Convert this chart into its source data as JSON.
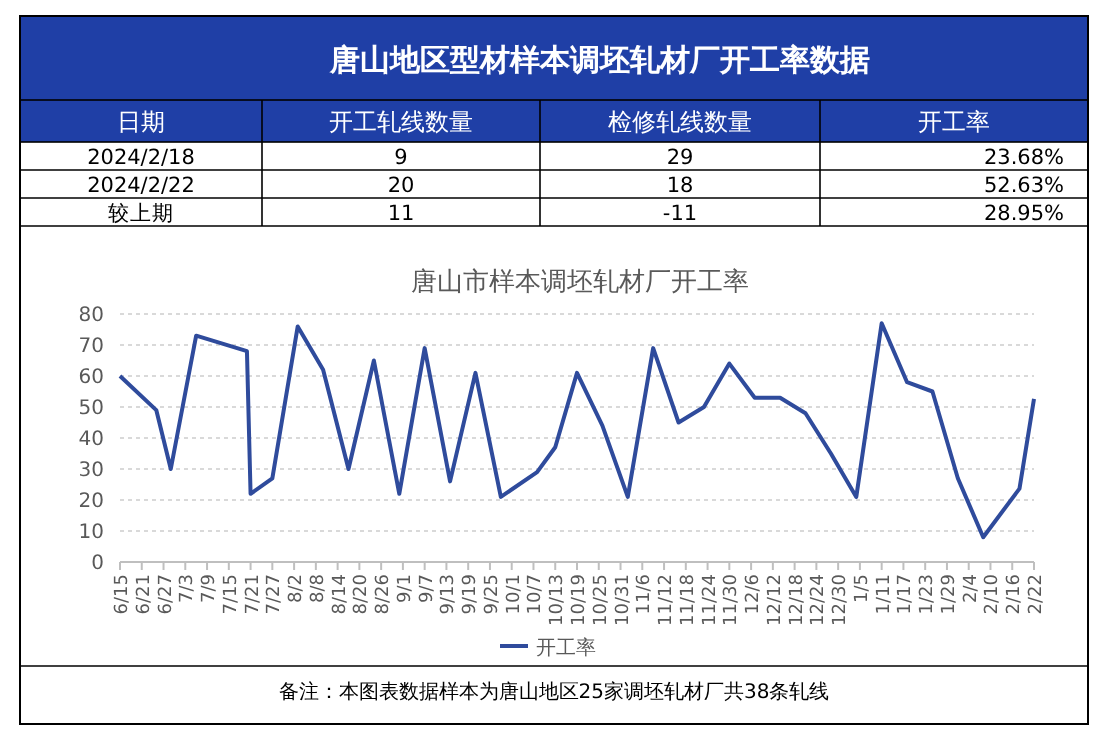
{
  "chart_data": [
    {
      "type": "other",
      "title": "唐山地区型材样本调坯轧材厂开工率数据",
      "categories": [
        "日期",
        "开工轧线数量",
        "检修轧线数量",
        "开工率"
      ],
      "cell_labels": [
        [
          "2024/2/18",
          "9",
          "29",
          "23.68%"
        ],
        [
          "2024/2/22",
          "20",
          "18",
          "52.63%"
        ],
        [
          "较上期",
          "11",
          "-11",
          "28.95%"
        ]
      ]
    },
    {
      "type": "line",
      "title": "唐山市样本调坯轧材厂开工率",
      "legend": "bottom",
      "grid": "y",
      "marker": "none",
      "line_style": "solid",
      "annotations": [
        "备注：本图表数据样本为唐山地区25家调坯轧材厂共38条轧线"
      ],
      "xlim": [
        "2023-06-15",
        "2024-02-22"
      ],
      "ylim": [
        0,
        80
      ],
      "yticks": [
        0,
        10,
        20,
        30,
        40,
        50,
        60,
        70,
        80
      ],
      "xticks": [
        {
          "value": "2023-06-15",
          "label": "6/15"
        },
        {
          "value": "2023-06-21",
          "label": "6/21"
        },
        {
          "value": "2023-06-27",
          "label": "6/27"
        },
        {
          "value": "2023-07-03",
          "label": "7/3"
        },
        {
          "value": "2023-07-09",
          "label": "7/9"
        },
        {
          "value": "2023-07-15",
          "label": "7/15"
        },
        {
          "value": "2023-07-21",
          "label": "7/21"
        },
        {
          "value": "2023-07-27",
          "label": "7/27"
        },
        {
          "value": "2023-08-02",
          "label": "8/2"
        },
        {
          "value": "2023-08-08",
          "label": "8/8"
        },
        {
          "value": "2023-08-14",
          "label": "8/14"
        },
        {
          "value": "2023-08-20",
          "label": "8/20"
        },
        {
          "value": "2023-08-26",
          "label": "8/26"
        },
        {
          "value": "2023-09-01",
          "label": "9/1"
        },
        {
          "value": "2023-09-07",
          "label": "9/7"
        },
        {
          "value": "2023-09-13",
          "label": "9/13"
        },
        {
          "value": "2023-09-19",
          "label": "9/19"
        },
        {
          "value": "2023-09-25",
          "label": "9/25"
        },
        {
          "value": "2023-10-01",
          "label": "10/1"
        },
        {
          "value": "2023-10-07",
          "label": "10/7"
        },
        {
          "value": "2023-10-13",
          "label": "10/13"
        },
        {
          "value": "2023-10-19",
          "label": "10/19"
        },
        {
          "value": "2023-10-25",
          "label": "10/25"
        },
        {
          "value": "2023-10-31",
          "label": "10/31"
        },
        {
          "value": "2023-11-06",
          "label": "11/6"
        },
        {
          "value": "2023-11-12",
          "label": "11/12"
        },
        {
          "value": "2023-11-18",
          "label": "11/18"
        },
        {
          "value": "2023-11-24",
          "label": "11/24"
        },
        {
          "value": "2023-11-30",
          "label": "11/30"
        },
        {
          "value": "2023-12-06",
          "label": "12/6"
        },
        {
          "value": "2023-12-12",
          "label": "12/12"
        },
        {
          "value": "2023-12-18",
          "label": "12/18"
        },
        {
          "value": "2023-12-24",
          "label": "12/24"
        },
        {
          "value": "2023-12-30",
          "label": "12/30"
        },
        {
          "value": "2024-01-05",
          "label": "1/5"
        },
        {
          "value": "2024-01-11",
          "label": "1/11"
        },
        {
          "value": "2024-01-17",
          "label": "1/17"
        },
        {
          "value": "2024-01-23",
          "label": "1/23"
        },
        {
          "value": "2024-01-29",
          "label": "1/29"
        },
        {
          "value": "2024-02-04",
          "label": "2/4"
        },
        {
          "value": "2024-02-10",
          "label": "2/10"
        },
        {
          "value": "2024-02-16",
          "label": "2/16"
        },
        {
          "value": "2024-02-22",
          "label": "2/22"
        }
      ],
      "x": [
        "2023-06-15",
        "2023-06-25",
        "2023-06-29",
        "2023-07-06",
        "2023-07-20",
        "2023-07-21",
        "2023-07-27",
        "2023-08-03",
        "2023-08-10",
        "2023-08-17",
        "2023-08-24",
        "2023-08-31",
        "2023-09-07",
        "2023-09-14",
        "2023-09-21",
        "2023-09-28",
        "2023-10-08",
        "2023-10-13",
        "2023-10-19",
        "2023-10-26",
        "2023-11-02",
        "2023-11-09",
        "2023-11-16",
        "2023-11-23",
        "2023-11-30",
        "2023-12-07",
        "2023-12-14",
        "2023-12-21",
        "2023-12-28",
        "2024-01-04",
        "2024-01-11",
        "2024-01-18",
        "2024-01-25",
        "2024-02-01",
        "2024-02-08",
        "2024-02-18",
        "2024-02-22"
      ],
      "series": [
        {
          "name": "开工率",
          "color": "#2f4b9c",
          "values": [
            60,
            49,
            30,
            73,
            68,
            22,
            27,
            76,
            62,
            30,
            65,
            22,
            69,
            26,
            61,
            21,
            29,
            37,
            61,
            44,
            21,
            69,
            45,
            50,
            64,
            53,
            53,
            48,
            35,
            21,
            77,
            58,
            55,
            27,
            8,
            23.68,
            52.63
          ]
        }
      ]
    }
  ]
}
